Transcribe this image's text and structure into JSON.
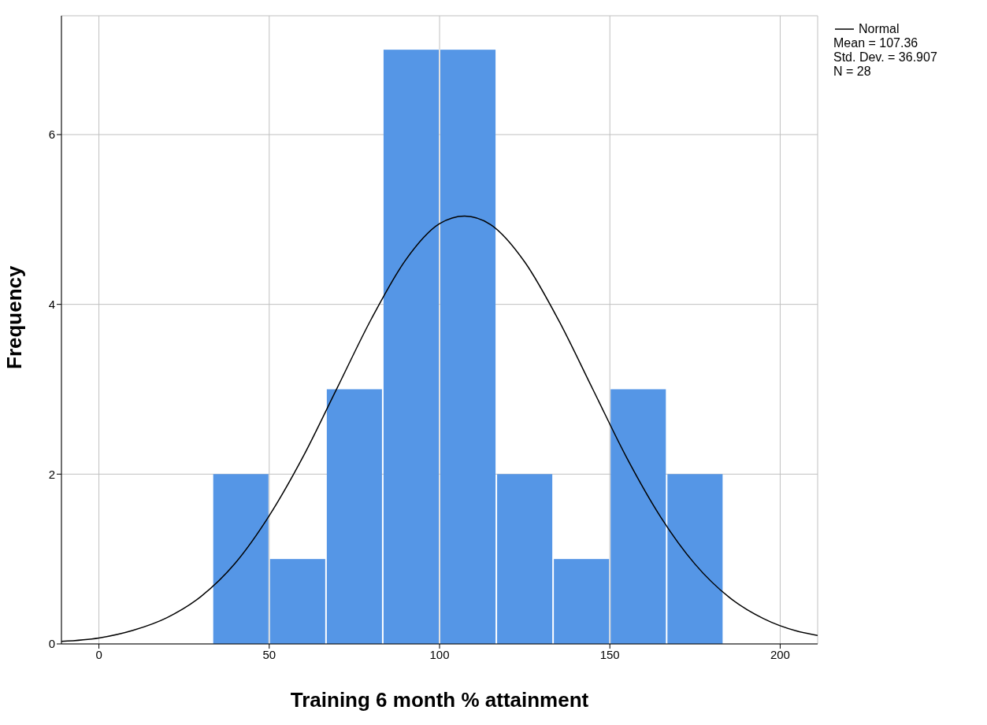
{
  "chart_data": {
    "type": "histogram",
    "xlabel": "Training 6 month % attainment",
    "ylabel": "Frequency",
    "bins": [
      33.33,
      50,
      66.67,
      83.33,
      100,
      116.67,
      133.33,
      150,
      166.67,
      183.33
    ],
    "values": [
      2,
      1,
      3,
      7,
      7,
      2,
      1,
      3,
      2
    ],
    "color": "#5596e6",
    "series": [
      {
        "name": "Normal",
        "type": "line",
        "color": "#000000",
        "x": [
          -11,
          0,
          10,
          20,
          30,
          40,
          50,
          60,
          70,
          80,
          90,
          100,
          107.36,
          115,
          125,
          135,
          145,
          155,
          165,
          175,
          185,
          195,
          205,
          211
        ],
        "values": [
          0.03,
          0.07,
          0.16,
          0.31,
          0.56,
          0.95,
          1.51,
          2.21,
          3.02,
          3.83,
          4.52,
          4.95,
          5.04,
          4.94,
          4.5,
          3.81,
          3.0,
          2.19,
          1.49,
          0.94,
          0.55,
          0.3,
          0.15,
          0.1
        ]
      }
    ],
    "xlim": [
      -11,
      211
    ],
    "xticks": [
      0,
      50,
      100,
      150,
      200
    ],
    "ylim": [
      0,
      7.4
    ],
    "yticks": [
      0,
      2,
      4,
      6
    ],
    "grid": true,
    "legend": "top right",
    "annotations": [
      "Mean = 107.36",
      "Std. Dev. = 36.907",
      "N = 28"
    ]
  }
}
